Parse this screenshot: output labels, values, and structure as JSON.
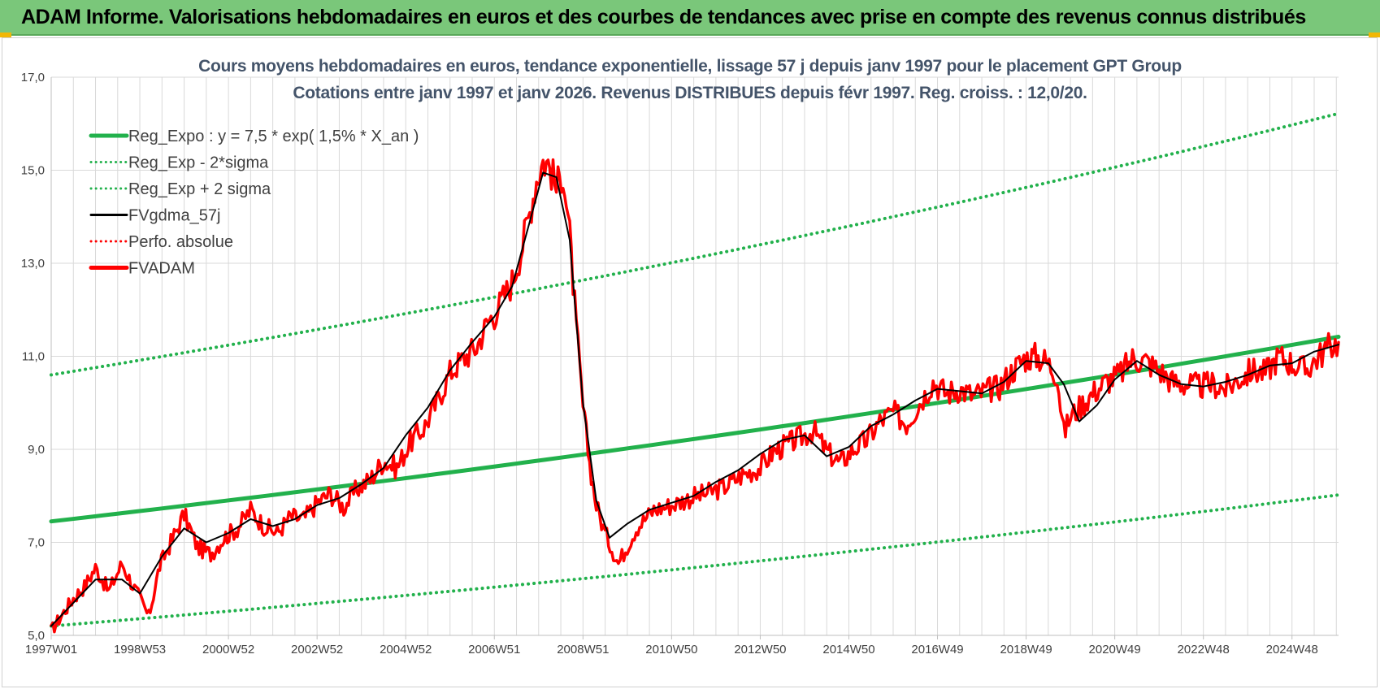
{
  "header": {
    "title": "ADAM Informe. Valorisations hebdomadaires en euros et des courbes de tendances avec prise en compte des revenus connus distribués"
  },
  "colors": {
    "header_bg": "#7ac77a",
    "reg_green": "#22b14c",
    "fvgdma_black": "#000000",
    "fvadam_red": "#ff0000",
    "title_text": "#44546a",
    "grid": "#d9d9d9"
  },
  "chart_data": {
    "type": "line",
    "title": "Cours moyens hebdomadaires en euros, tendance exponentielle, lissage 57 j depuis janv 1997 pour le placement GPT Group",
    "subtitle": "Cotations entre janv 1997 et janv 2026. Revenus DISTRIBUES depuis févr 1997. Reg. croiss. : 12,0/20.",
    "xlabel": "",
    "ylabel": "",
    "x_range": [
      1997.0,
      2026.05
    ],
    "ylim": [
      5.0,
      17.0
    ],
    "y_ticks": [
      "5,0",
      "7,0",
      "9,0",
      "11,0",
      "13,0",
      "15,0",
      "17,0"
    ],
    "x_ticks": [
      {
        "label": "1997W01",
        "x": 1997.0
      },
      {
        "label": "1998W53",
        "x": 1999.0
      },
      {
        "label": "2000W52",
        "x": 2001.0
      },
      {
        "label": "2002W52",
        "x": 2003.0
      },
      {
        "label": "2004W52",
        "x": 2005.0
      },
      {
        "label": "2006W51",
        "x": 2007.0
      },
      {
        "label": "2008W51",
        "x": 2009.0
      },
      {
        "label": "2010W50",
        "x": 2011.0
      },
      {
        "label": "2012W50",
        "x": 2013.0
      },
      {
        "label": "2014W50",
        "x": 2015.0
      },
      {
        "label": "2016W49",
        "x": 2017.0
      },
      {
        "label": "2018W49",
        "x": 2019.0
      },
      {
        "label": "2020W49",
        "x": 2021.0
      },
      {
        "label": "2022W48",
        "x": 2023.0
      },
      {
        "label": "2024W48",
        "x": 2025.0
      }
    ],
    "grid": true,
    "legend_position": "top-left",
    "legend": [
      {
        "label": "Reg_Expo : y = 7,5 * exp( 1,5% *  X_an )",
        "style": "solid-thick",
        "color": "#22b14c"
      },
      {
        "label": "Reg_Exp - 2*sigma",
        "style": "dotted",
        "color": "#22b14c"
      },
      {
        "label": "Reg_Exp + 2 sigma",
        "style": "dotted",
        "color": "#22b14c"
      },
      {
        "label": "FVgdma_57j",
        "style": "solid",
        "color": "#000000"
      },
      {
        "label": "Perfo. absolue",
        "style": "dotted",
        "color": "#ff0000"
      },
      {
        "label": "FVADAM",
        "style": "solid-thick",
        "color": "#ff0000"
      }
    ],
    "series": [
      {
        "name": "Reg_Expo : y = 7,5 * exp( 1,5% *  X_an )",
        "x": [
          1997.0,
          2026.05
        ],
        "values": [
          7.45,
          11.42
        ]
      },
      {
        "name": "Reg_Exp - 2*sigma",
        "x": [
          1997.0,
          2026.05
        ],
        "values": [
          5.2,
          8.02
        ]
      },
      {
        "name": "Reg_Exp + 2 sigma",
        "x": [
          1997.0,
          2026.05
        ],
        "values": [
          10.6,
          16.22
        ]
      },
      {
        "name": "FVADAM",
        "x": [
          1997.0,
          1997.25,
          1997.5,
          1997.75,
          1998.0,
          1998.3,
          1998.6,
          1998.8,
          1999.0,
          1999.2,
          1999.45,
          1999.7,
          2000.0,
          2000.3,
          2000.6,
          2000.9,
          2001.2,
          2001.5,
          2001.8,
          2002.1,
          2002.4,
          2002.7,
          2003.0,
          2003.3,
          2003.6,
          2003.9,
          2004.2,
          2004.5,
          2004.8,
          2005.1,
          2005.4,
          2005.7,
          2006.0,
          2006.3,
          2006.6,
          2006.85,
          2007.0,
          2007.2,
          2007.4,
          2007.6,
          2007.8,
          2007.95,
          2008.1,
          2008.25,
          2008.4,
          2008.55,
          2008.7,
          2008.85,
          2009.0,
          2009.15,
          2009.3,
          2009.5,
          2009.8,
          2010.2,
          2010.6,
          2011.0,
          2011.4,
          2011.8,
          2012.2,
          2012.6,
          2013.0,
          2013.3,
          2013.6,
          2013.9,
          2014.2,
          2014.5,
          2014.8,
          2015.1,
          2015.4,
          2015.7,
          2016.0,
          2016.3,
          2016.6,
          2016.9,
          2017.2,
          2017.5,
          2017.8,
          2018.1,
          2018.4,
          2018.7,
          2018.95,
          2019.2,
          2019.45,
          2019.7,
          2019.85,
          2020.0,
          2020.2,
          2020.5,
          2020.8,
          2021.1,
          2021.4,
          2021.7,
          2022.0,
          2022.3,
          2022.6,
          2022.9,
          2023.2,
          2023.5,
          2023.8,
          2024.1,
          2024.4,
          2024.7,
          2025.0,
          2025.3,
          2025.6,
          2025.9,
          2026.05
        ],
        "values": [
          5.1,
          5.45,
          5.8,
          6.05,
          6.45,
          5.95,
          6.55,
          6.15,
          5.8,
          5.4,
          6.5,
          7.0,
          7.6,
          6.9,
          6.75,
          7.1,
          7.3,
          7.7,
          7.35,
          7.2,
          7.55,
          7.5,
          7.85,
          8.05,
          7.75,
          8.15,
          8.35,
          8.75,
          8.6,
          9.15,
          9.45,
          10.0,
          10.65,
          10.95,
          11.2,
          11.75,
          11.9,
          12.25,
          12.6,
          13.25,
          14.1,
          14.8,
          15.2,
          15.1,
          14.6,
          15.0,
          13.6,
          11.6,
          9.9,
          8.7,
          7.8,
          7.2,
          6.55,
          7.3,
          7.7,
          7.8,
          7.95,
          8.05,
          8.2,
          8.45,
          8.6,
          8.95,
          9.1,
          9.25,
          9.4,
          8.95,
          8.7,
          9.0,
          9.2,
          9.6,
          9.8,
          9.55,
          10.0,
          10.45,
          10.2,
          10.3,
          10.15,
          10.25,
          10.35,
          10.7,
          10.95,
          11.0,
          10.9,
          10.6,
          9.35,
          9.7,
          9.9,
          10.2,
          10.45,
          10.6,
          10.95,
          10.9,
          10.7,
          10.45,
          10.4,
          10.35,
          10.4,
          10.3,
          10.5,
          10.7,
          10.65,
          11.0,
          10.85,
          10.7,
          11.0,
          11.25,
          11.3
        ]
      },
      {
        "name": "FVgdma_57j",
        "x": [
          1997.0,
          1997.5,
          1998.0,
          1998.6,
          1999.0,
          1999.5,
          2000.0,
          2000.5,
          2001.0,
          2001.5,
          2002.0,
          2002.5,
          2003.0,
          2003.5,
          2004.0,
          2004.5,
          2005.0,
          2005.5,
          2006.0,
          2006.5,
          2007.0,
          2007.4,
          2007.8,
          2008.1,
          2008.4,
          2008.7,
          2009.0,
          2009.3,
          2009.6,
          2010.0,
          2010.5,
          2011.0,
          2011.5,
          2012.0,
          2012.5,
          2013.0,
          2013.5,
          2014.0,
          2014.5,
          2015.0,
          2015.5,
          2016.0,
          2016.5,
          2017.0,
          2017.5,
          2018.0,
          2018.5,
          2019.0,
          2019.5,
          2019.85,
          2020.2,
          2020.6,
          2021.0,
          2021.5,
          2022.0,
          2022.5,
          2023.0,
          2023.5,
          2024.0,
          2024.5,
          2025.0,
          2025.5,
          2026.05
        ],
        "values": [
          5.2,
          5.7,
          6.2,
          6.2,
          5.9,
          6.7,
          7.3,
          7.0,
          7.2,
          7.5,
          7.35,
          7.5,
          7.8,
          7.95,
          8.25,
          8.6,
          9.3,
          9.9,
          10.7,
          11.3,
          11.85,
          12.5,
          13.9,
          14.95,
          14.85,
          13.5,
          10.0,
          7.9,
          7.1,
          7.4,
          7.7,
          7.85,
          8.0,
          8.3,
          8.55,
          8.9,
          9.2,
          9.3,
          8.85,
          9.05,
          9.5,
          9.75,
          10.05,
          10.3,
          10.25,
          10.2,
          10.45,
          10.9,
          10.85,
          10.4,
          9.6,
          9.95,
          10.5,
          10.9,
          10.6,
          10.4,
          10.35,
          10.45,
          10.6,
          10.8,
          10.85,
          11.1,
          11.25
        ]
      }
    ]
  }
}
